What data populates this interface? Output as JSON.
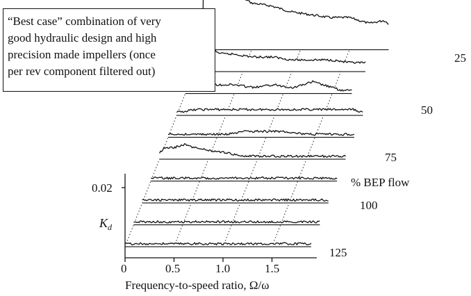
{
  "chart_data": {
    "type": "line",
    "view": "waterfall",
    "title": "",
    "xlabel": "Frequency-to-speed ratio, Ω/ω",
    "ylabel": "K_d",
    "x_ticks": [
      "0",
      "0.5",
      "1.0",
      "1.5"
    ],
    "y_ticks": [
      "0.02"
    ],
    "xlim": [
      0,
      1.95
    ],
    "depth_axis_label": "% BEP flow",
    "depth_tick_labels": [
      "25",
      "50",
      "75",
      "100",
      "125"
    ],
    "annotation": [
      "“Best case” combination of very",
      "good hydraulic design and high",
      "precision made impellers (once",
      "per rev component filtered out)"
    ],
    "series": [
      {
        "name": "25",
        "x": [
          0.0,
          0.01,
          0.015,
          0.02,
          0.05,
          0.1,
          0.15,
          0.25,
          0.35,
          0.5,
          0.7,
          0.9,
          1.1,
          1.3,
          1.5,
          1.7,
          1.85,
          1.9
        ],
        "values": [
          0.0,
          0.03,
          0.029,
          0.02,
          0.024,
          0.021,
          0.021,
          0.02,
          0.019,
          0.016,
          0.015,
          0.013,
          0.012,
          0.011,
          0.011,
          0.009,
          0.01,
          0.009
        ]
      },
      {
        "name": "",
        "x": [
          0.0,
          0.01,
          0.03,
          0.1,
          0.2,
          0.3,
          0.4,
          0.6,
          0.8,
          1.0,
          1.2,
          1.4,
          1.6,
          1.75
        ],
        "values": [
          0.0,
          0.01,
          0.011,
          0.01,
          0.007,
          0.006,
          0.006,
          0.005,
          0.005,
          0.004,
          0.004,
          0.004,
          0.003,
          0.003
        ]
      },
      {
        "name": "",
        "x": [
          0.0,
          0.1,
          0.3,
          0.5,
          0.7,
          0.9,
          1.1,
          1.2,
          1.3,
          1.4,
          1.5,
          1.6,
          1.7
        ],
        "values": [
          0.002,
          0.003,
          0.003,
          0.003,
          0.002,
          0.003,
          0.002,
          0.003,
          0.004,
          0.003,
          0.002,
          0.001,
          0.001
        ]
      },
      {
        "name": "50",
        "x": [
          0.0,
          0.2,
          0.4,
          0.6,
          0.8,
          1.0,
          1.2,
          1.4,
          1.6,
          1.8,
          1.9
        ],
        "values": [
          0.001,
          0.002,
          0.002,
          0.002,
          0.002,
          0.002,
          0.002,
          0.002,
          0.002,
          0.002,
          0.001
        ]
      },
      {
        "name": "",
        "x": [
          0.0,
          0.2,
          0.4,
          0.6,
          0.8,
          1.0,
          1.2,
          1.4,
          1.6,
          1.8,
          1.9
        ],
        "values": [
          0.001,
          0.001,
          0.001,
          0.001,
          0.002,
          0.002,
          0.002,
          0.001,
          0.001,
          0.001,
          0.001
        ]
      },
      {
        "name": "75",
        "x": [
          0.0,
          0.05,
          0.15,
          0.25,
          0.35,
          0.5,
          0.7,
          0.9,
          1.1,
          1.3,
          1.5,
          1.7,
          1.9
        ],
        "values": [
          0.002,
          0.004,
          0.004,
          0.005,
          0.004,
          0.003,
          0.002,
          0.001,
          0.001,
          0.001,
          0.001,
          0.001,
          0.001
        ]
      },
      {
        "name": "",
        "x": [
          0.0,
          0.2,
          0.4,
          0.6,
          0.8,
          1.0,
          1.2,
          1.4,
          1.6,
          1.8,
          1.9
        ],
        "values": [
          0.001,
          0.001,
          0.001,
          0.001,
          0.001,
          0.001,
          0.001,
          0.001,
          0.001,
          0.001,
          0.001
        ]
      },
      {
        "name": "100",
        "x": [
          0.0,
          0.2,
          0.4,
          0.6,
          0.8,
          1.0,
          1.2,
          1.4,
          1.6,
          1.8,
          1.9
        ],
        "values": [
          0.001,
          0.001,
          0.001,
          0.001,
          0.001,
          0.001,
          0.001,
          0.001,
          0.001,
          0.001,
          0.001
        ]
      },
      {
        "name": "",
        "x": [
          0.0,
          0.2,
          0.4,
          0.6,
          0.8,
          1.0,
          1.2,
          1.4,
          1.6,
          1.8,
          1.9
        ],
        "values": [
          0.001,
          0.001,
          0.001,
          0.001,
          0.001,
          0.001,
          0.001,
          0.001,
          0.001,
          0.001,
          0.001
        ]
      },
      {
        "name": "125",
        "x": [
          0.0,
          0.2,
          0.4,
          0.6,
          0.8,
          1.0,
          1.2,
          1.4,
          1.6,
          1.8,
          1.9
        ],
        "values": [
          0.001,
          0.001,
          0.001,
          0.001,
          0.001,
          0.001,
          0.001,
          0.001,
          0.001,
          0.001,
          0.001
        ]
      }
    ]
  }
}
